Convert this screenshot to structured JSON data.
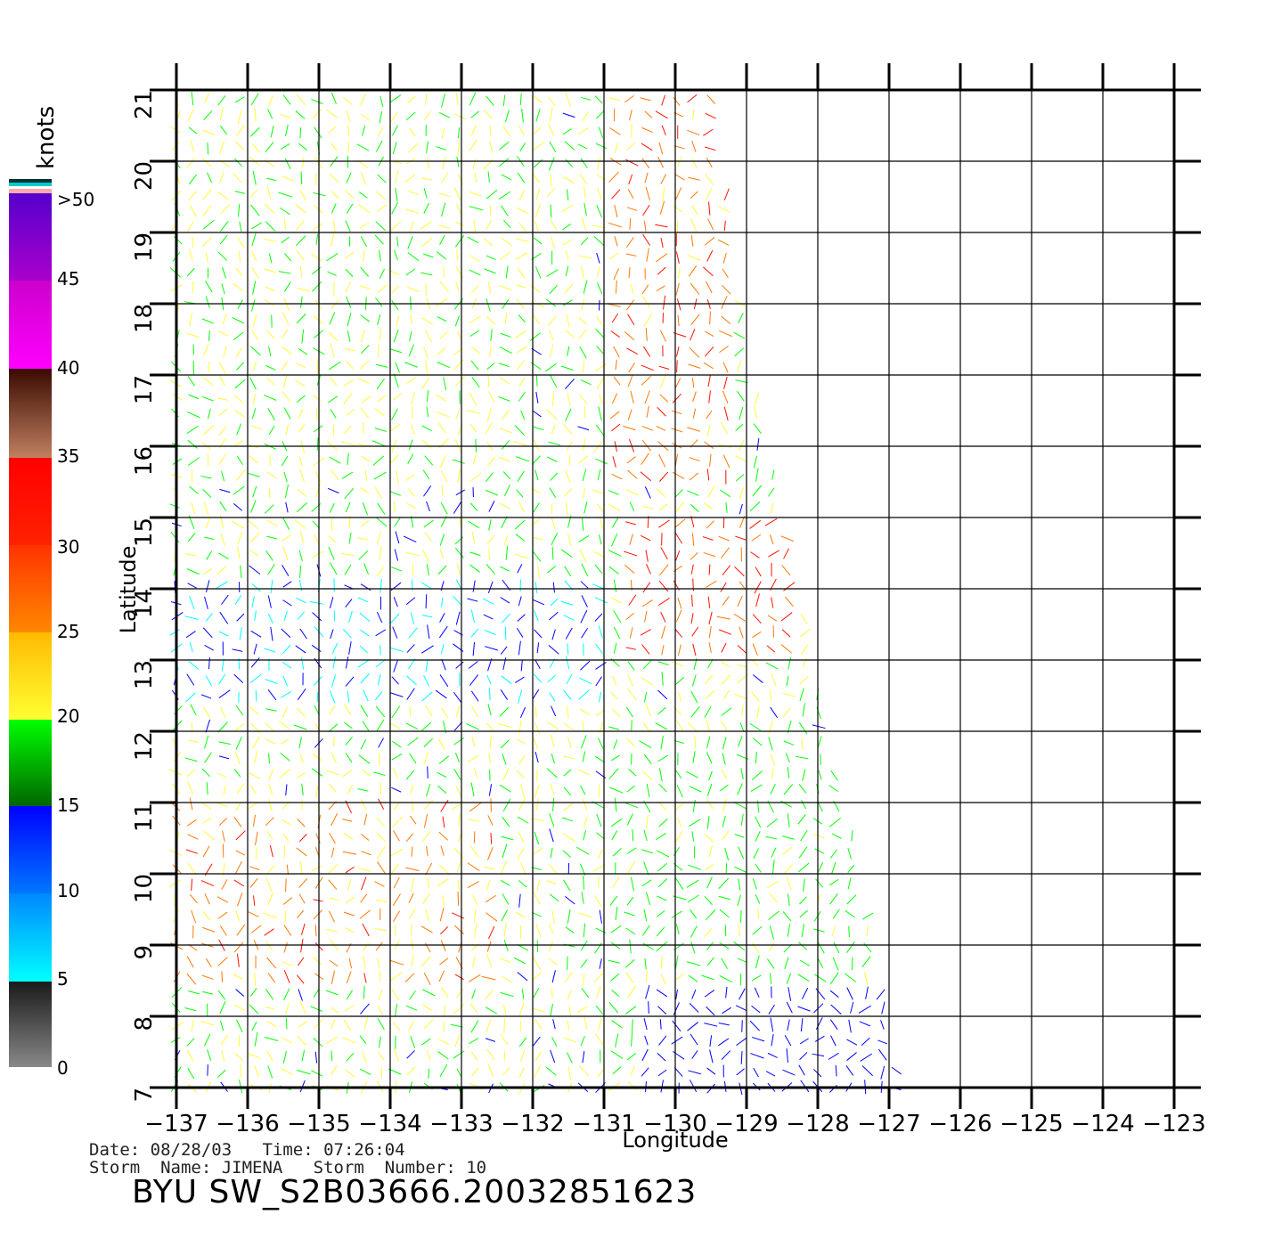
{
  "map": {
    "type": "wind-vector-map",
    "lon_range": [
      -137,
      -123
    ],
    "lat_range": [
      7,
      21
    ],
    "lon_ticks": [
      "-137",
      "-136",
      "-135",
      "-134",
      "-133",
      "-132",
      "-131",
      "-130",
      "-129",
      "-128",
      "-127",
      "-126",
      "-125",
      "-124",
      "-123"
    ],
    "lat_ticks": [
      "7",
      "8",
      "9",
      "10",
      "11",
      "12",
      "13",
      "14",
      "15",
      "16",
      "17",
      "18",
      "19",
      "20",
      "21"
    ],
    "xlabel": "Longitude",
    "ylabel": "Latitude",
    "grid": true
  },
  "colorbar": {
    "title": "knots",
    "labels": [
      "0",
      "5",
      "10",
      "15",
      "20",
      "25",
      "30",
      "35",
      "40",
      "45",
      ">50"
    ],
    "colors": {
      "0_5": "#888888",
      "5_10": "#00ffff",
      "10_15": "#0000ff",
      "15_20": "#00ff00",
      "20_25": "#ffff33",
      "25_30": "#ff7700",
      "30_35": "#ff1100",
      "35_40": "#6b2a17",
      "40_45": "#ff00ff",
      "45_50": "#6a00cc"
    }
  },
  "info": {
    "line1": "Date: 08/28/03   Time: 07:26:04",
    "line2": "Storm  Name: JIMENA   Storm  Number: 10",
    "product_id": "BYU  SW_S2B03666.20032851623"
  }
}
